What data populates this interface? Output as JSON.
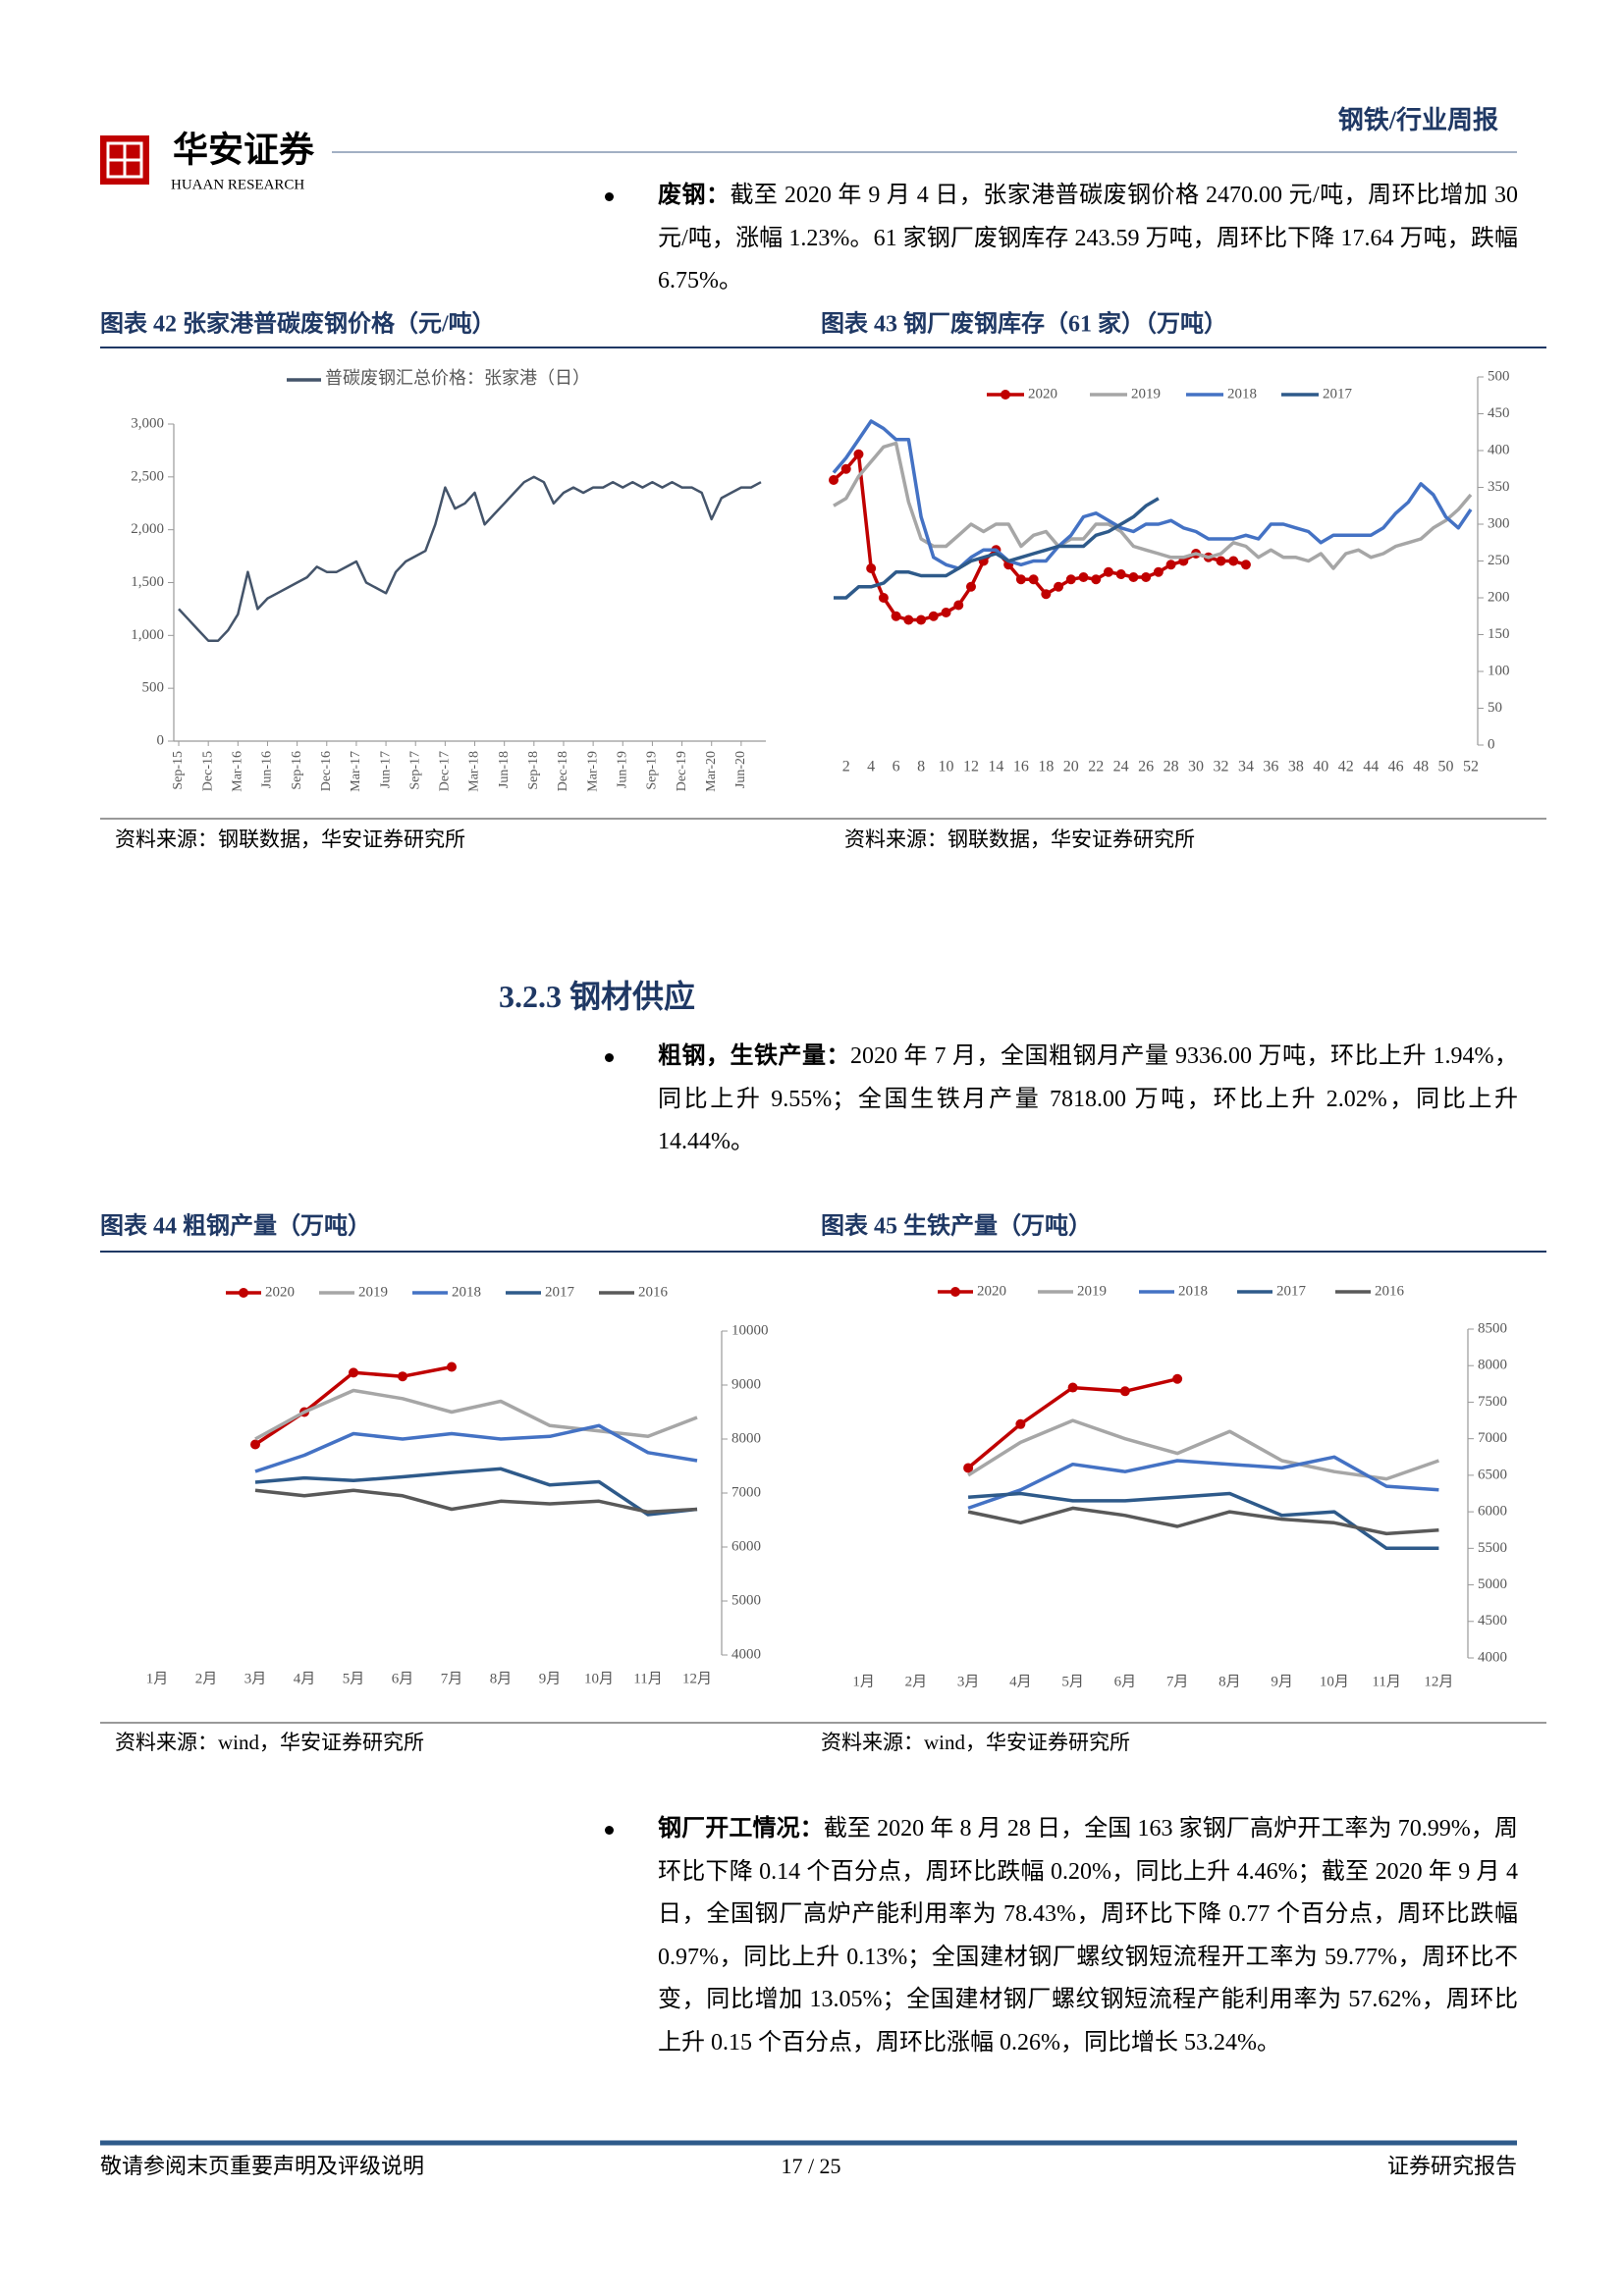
{
  "header": {
    "logo_cn": "华安证券",
    "logo_en": "HUAAN RESEARCH",
    "title": "钢铁/行业周报"
  },
  "paragraphs": [
    {
      "lead": "废钢：",
      "text": "截至 2020 年 9 月 4 日，张家港普碳废钢价格 2470.00 元/吨，周环比增加 30 元/吨，涨幅 1.23%。61 家钢厂废钢库存 243.59 万吨，周环比下降 17.64 万吨，跌幅 6.75%。"
    },
    {
      "lead": "粗钢，生铁产量：",
      "text": "2020 年 7 月，全国粗钢月产量 9336.00 万吨，环比上升 1.94%，同比上升 9.55%；全国生铁月产量 7818.00 万吨，环比上升 2.02%，同比上升 14.44%。"
    },
    {
      "lead": "钢厂开工情况：",
      "text": "截至 2020 年 8 月 28 日，全国 163 家钢厂高炉开工率为 70.99%，周环比下降 0.14 个百分点，周环比跌幅 0.20%，同比上升 4.46%；截至 2020 年 9 月 4 日，全国钢厂高炉产能利用率为 78.43%，周环比下降 0.77 个百分点，周环比跌幅 0.97%，同比上升 0.13%；全国建材钢厂螺纹钢短流程开工率为 59.77%，周环比不变，同比增加 13.05%；全国建材钢厂螺纹钢短流程产能利用率为 57.62%，周环比上升 0.15 个百分点，周环比涨幅 0.26%，同比增长 53.24%。"
    }
  ],
  "section": "3.2.3 钢材供应",
  "chart_data": [
    {
      "type": "line",
      "title": "图表 42 张家港普碳废钢价格（元/吨）",
      "source": "资料来源：钢联数据，华安证券研究所",
      "categories": [
        "Sep-15",
        null,
        null,
        "Dec-15",
        null,
        null,
        "Mar-16",
        null,
        null,
        "Jun-16",
        null,
        null,
        "Sep-16",
        null,
        null,
        "Dec-16",
        null,
        null,
        "Mar-17",
        null,
        null,
        "Jun-17",
        null,
        null,
        "Sep-17",
        null,
        null,
        "Dec-17",
        null,
        null,
        "Mar-18",
        null,
        null,
        "Jun-18",
        null,
        null,
        "Sep-18",
        null,
        null,
        "Dec-18",
        null,
        null,
        "Mar-19",
        null,
        null,
        "Jun-19",
        null,
        null,
        "Sep-19",
        null,
        null,
        "Dec-19",
        null,
        null,
        "Mar-20",
        null,
        null,
        "Jun-20",
        null,
        null
      ],
      "series": [
        {
          "name": "普碳废钢汇总价格：张家港（日）",
          "color": "#44546a",
          "values": [
            1250,
            1150,
            1050,
            950,
            950,
            1050,
            1200,
            1600,
            1250,
            1350,
            1400,
            1450,
            1500,
            1550,
            1650,
            1600,
            1600,
            1650,
            1700,
            1500,
            1450,
            1400,
            1600,
            1700,
            1750,
            1800,
            2050,
            2400,
            2200,
            2250,
            2350,
            2050,
            2150,
            2250,
            2350,
            2450,
            2500,
            2450,
            2250,
            2350,
            2400,
            2350,
            2400,
            2400,
            2450,
            2400,
            2450,
            2400,
            2450,
            2400,
            2450,
            2400,
            2400,
            2350,
            2100,
            2300,
            2350,
            2400,
            2400,
            2450
          ]
        }
      ],
      "ylim": [
        0,
        3000
      ],
      "yticks": [
        0,
        500,
        {
          "value": 1000,
          "label": "1,000"
        },
        {
          "value": 1500,
          "label": "1,500"
        },
        {
          "value": 2000,
          "label": "2,000"
        },
        {
          "value": 2500,
          "label": "2,500"
        },
        {
          "value": 3000,
          "label": "3,000"
        }
      ],
      "grid": false,
      "legend": "top"
    },
    {
      "type": "line",
      "title": "图表 43 钢厂废钢库存（61 家）（万吨）",
      "source": "资料来源：钢联数据，华安证券研究所",
      "x": [
        1,
        2,
        3,
        4,
        5,
        6,
        7,
        8,
        9,
        10,
        11,
        12,
        13,
        14,
        15,
        16,
        17,
        18,
        19,
        20,
        21,
        22,
        23,
        24,
        25,
        26,
        27,
        28,
        29,
        30,
        31,
        32,
        33,
        34,
        35,
        36,
        37,
        38,
        39,
        40,
        41,
        42,
        43,
        44,
        45,
        46,
        47,
        48,
        49,
        50,
        51,
        52
      ],
      "xlim": [
        1,
        52
      ],
      "xticks": [
        2,
        4,
        6,
        8,
        10,
        12,
        14,
        16,
        18,
        20,
        22,
        24,
        26,
        28,
        30,
        32,
        34,
        36,
        38,
        40,
        42,
        44,
        46,
        48,
        50,
        52
      ],
      "series": [
        {
          "name": "2020",
          "color": "#c00000",
          "markers": true,
          "values": [
            360,
            375,
            395,
            240,
            200,
            175,
            170,
            170,
            175,
            180,
            190,
            215,
            250,
            265,
            245,
            225,
            225,
            205,
            215,
            225,
            228,
            225,
            235,
            232,
            228,
            228,
            235,
            245,
            250,
            260,
            255,
            250,
            250,
            245,
            null,
            null,
            null,
            null,
            null,
            null,
            null,
            null,
            null,
            null,
            null,
            null,
            null,
            null,
            null,
            null,
            null,
            null
          ]
        },
        {
          "name": "2019",
          "color": "#a6a6a6",
          "values": [
            325,
            335,
            365,
            385,
            405,
            410,
            330,
            280,
            270,
            270,
            285,
            300,
            290,
            300,
            300,
            270,
            285,
            290,
            270,
            280,
            280,
            300,
            300,
            290,
            270,
            265,
            260,
            255,
            255,
            260,
            255,
            260,
            275,
            270,
            255,
            265,
            255,
            255,
            250,
            260,
            240,
            260,
            265,
            255,
            260,
            270,
            275,
            280,
            295,
            305,
            320,
            340
          ]
        },
        {
          "name": "2018",
          "color": "#4472c4",
          "values": [
            370,
            390,
            415,
            440,
            430,
            415,
            415,
            310,
            255,
            245,
            240,
            255,
            265,
            265,
            250,
            245,
            250,
            250,
            270,
            285,
            310,
            315,
            305,
            295,
            290,
            300,
            300,
            305,
            295,
            290,
            280,
            280,
            280,
            285,
            280,
            300,
            300,
            295,
            290,
            275,
            285,
            285,
            285,
            285,
            295,
            315,
            330,
            355,
            340,
            310,
            295,
            320
          ]
        },
        {
          "name": "2017",
          "color": "#2e5a8a",
          "values": [
            200,
            200,
            215,
            215,
            220,
            235,
            235,
            230,
            230,
            230,
            240,
            250,
            255,
            260,
            250,
            255,
            260,
            265,
            270,
            270,
            270,
            285,
            290,
            300,
            310,
            325,
            335,
            null,
            null,
            null,
            null,
            null,
            null,
            null,
            null,
            null,
            null,
            null,
            null,
            null,
            null,
            null,
            null,
            null,
            null,
            null,
            null,
            null,
            null,
            null,
            null,
            null
          ]
        }
      ],
      "ylim": [
        0,
        500
      ],
      "yticks": [
        0,
        50,
        100,
        150,
        200,
        250,
        300,
        350,
        400,
        450,
        500
      ],
      "grid": false,
      "legend": "top",
      "y_axis": "right"
    },
    {
      "type": "line",
      "title": "图表 44 粗钢产量（万吨）",
      "source": "资料来源：wind，华安证券研究所",
      "categories": [
        "1月",
        "2月",
        "3月",
        "4月",
        "5月",
        "6月",
        "7月",
        "8月",
        "9月",
        "10月",
        "11月",
        "12月"
      ],
      "series": [
        {
          "name": "2020",
          "color": "#c00000",
          "markers": true,
          "values": [
            null,
            null,
            7900,
            8500,
            9230,
            9160,
            9336,
            null,
            null,
            null,
            null,
            null
          ]
        },
        {
          "name": "2019",
          "color": "#a6a6a6",
          "values": [
            null,
            null,
            8000,
            8500,
            8900,
            8750,
            8500,
            8700,
            8250,
            8150,
            8050,
            8400
          ]
        },
        {
          "name": "2018",
          "color": "#4472c4",
          "values": [
            null,
            null,
            7400,
            7700,
            8100,
            8000,
            8100,
            8000,
            8050,
            8250,
            7750,
            7600
          ]
        },
        {
          "name": "2017",
          "color": "#2e5a8a",
          "values": [
            null,
            null,
            7200,
            7280,
            7230,
            7300,
            7380,
            7450,
            7150,
            7210,
            6600,
            6700
          ]
        },
        {
          "name": "2016",
          "color": "#595959",
          "values": [
            null,
            null,
            7050,
            6950,
            7050,
            6950,
            6700,
            6850,
            6800,
            6850,
            6650,
            6700
          ]
        }
      ],
      "ylim": [
        4000,
        10000
      ],
      "yticks": [
        4000,
        5000,
        6000,
        7000,
        8000,
        9000,
        10000
      ],
      "grid": false,
      "legend": "top",
      "y_axis": "right"
    },
    {
      "type": "line",
      "title": "图表 45 生铁产量（万吨）",
      "source": "资料来源：wind，华安证券研究所",
      "categories": [
        "1月",
        "2月",
        "3月",
        "4月",
        "5月",
        "6月",
        "7月",
        "8月",
        "9月",
        "10月",
        "11月",
        "12月"
      ],
      "series": [
        {
          "name": "2020",
          "color": "#c00000",
          "markers": true,
          "values": [
            null,
            null,
            6600,
            7200,
            7700,
            7650,
            7818,
            null,
            null,
            null,
            null,
            null
          ]
        },
        {
          "name": "2019",
          "color": "#a6a6a6",
          "values": [
            null,
            null,
            6500,
            6950,
            7250,
            7000,
            6800,
            7100,
            6700,
            6550,
            6450,
            6700
          ]
        },
        {
          "name": "2018",
          "color": "#4472c4",
          "values": [
            null,
            null,
            6050,
            6300,
            6650,
            6550,
            6700,
            6650,
            6600,
            6750,
            6350,
            6300
          ]
        },
        {
          "name": "2017",
          "color": "#2e5a8a",
          "values": [
            null,
            null,
            6200,
            6250,
            6150,
            6150,
            6200,
            6250,
            5950,
            6000,
            5500,
            5500
          ]
        },
        {
          "name": "2016",
          "color": "#595959",
          "values": [
            null,
            null,
            6000,
            5850,
            6050,
            5950,
            5800,
            6000,
            5900,
            5850,
            5700,
            5750
          ]
        }
      ],
      "ylim": [
        4000,
        8500
      ],
      "yticks": [
        4000,
        4500,
        5000,
        5500,
        6000,
        6500,
        7000,
        7500,
        8000,
        8500
      ],
      "grid": false,
      "legend": "top",
      "y_axis": "right"
    }
  ],
  "footer": {
    "disclaimer": "敬请参阅末页重要声明及评级说明",
    "page": "17 / 25",
    "doc_type": "证券研究报告"
  }
}
